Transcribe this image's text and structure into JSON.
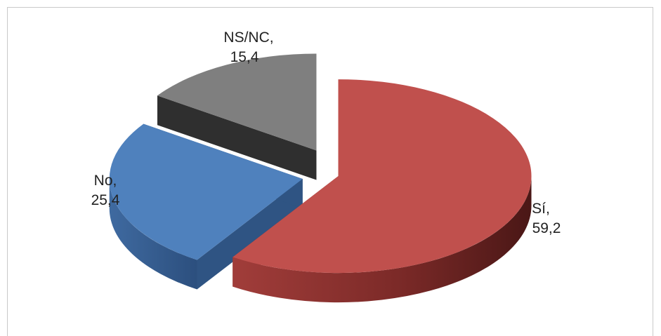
{
  "chart_data": {
    "type": "pie",
    "style": "3d-exploded",
    "title": "",
    "slices": [
      {
        "label": "Sí",
        "value": 59.2,
        "label_line1": "Sí,",
        "label_line2": "59,2",
        "color": "#c0504d",
        "side_color": "#7a2624"
      },
      {
        "label": "No",
        "value": 25.4,
        "label_line1": "No,",
        "label_line2": "25,4",
        "color": "#4f81bd",
        "side_color": "#2f5483"
      },
      {
        "label": "NS/NC",
        "value": 15.4,
        "label_line1": "NS/NC,",
        "label_line2": "15,4",
        "color": "#7f7f7f",
        "side_color": "#2f2f2f"
      }
    ],
    "legend": "none",
    "grid": false
  }
}
